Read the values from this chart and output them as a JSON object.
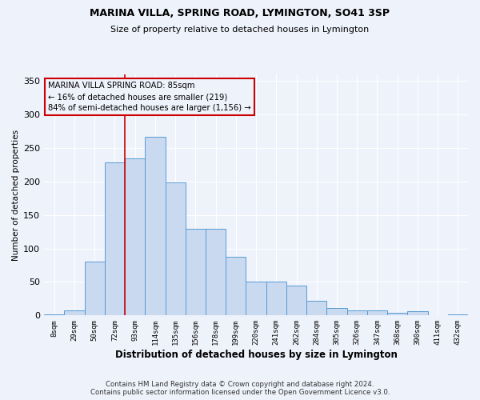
{
  "title1": "MARINA VILLA, SPRING ROAD, LYMINGTON, SO41 3SP",
  "title2": "Size of property relative to detached houses in Lymington",
  "xlabel": "Distribution of detached houses by size in Lymington",
  "ylabel": "Number of detached properties",
  "bar_labels": [
    "8sqm",
    "29sqm",
    "50sqm",
    "72sqm",
    "93sqm",
    "114sqm",
    "135sqm",
    "156sqm",
    "178sqm",
    "199sqm",
    "220sqm",
    "241sqm",
    "262sqm",
    "284sqm",
    "305sqm",
    "326sqm",
    "347sqm",
    "368sqm",
    "390sqm",
    "411sqm",
    "432sqm"
  ],
  "bar_heights": [
    2,
    8,
    80,
    229,
    235,
    267,
    199,
    130,
    130,
    88,
    50,
    50,
    45,
    22,
    11,
    8,
    8,
    4,
    6,
    0,
    2
  ],
  "bar_color": "#c8d9f0",
  "bar_edge_color": "#5a9bd5",
  "vline_x": 4.0,
  "vline_color": "#cc0000",
  "annotation_text": "MARINA VILLA SPRING ROAD: 85sqm\n← 16% of detached houses are smaller (219)\n84% of semi-detached houses are larger (1,156) →",
  "annotation_box_color": "#cc0000",
  "ylim": [
    0,
    360
  ],
  "yticks": [
    0,
    50,
    100,
    150,
    200,
    250,
    300,
    350
  ],
  "footer1": "Contains HM Land Registry data © Crown copyright and database right 2024.",
  "footer2": "Contains public sector information licensed under the Open Government Licence v3.0.",
  "bg_color": "#eef2fb",
  "grid_color": "#ffffff"
}
